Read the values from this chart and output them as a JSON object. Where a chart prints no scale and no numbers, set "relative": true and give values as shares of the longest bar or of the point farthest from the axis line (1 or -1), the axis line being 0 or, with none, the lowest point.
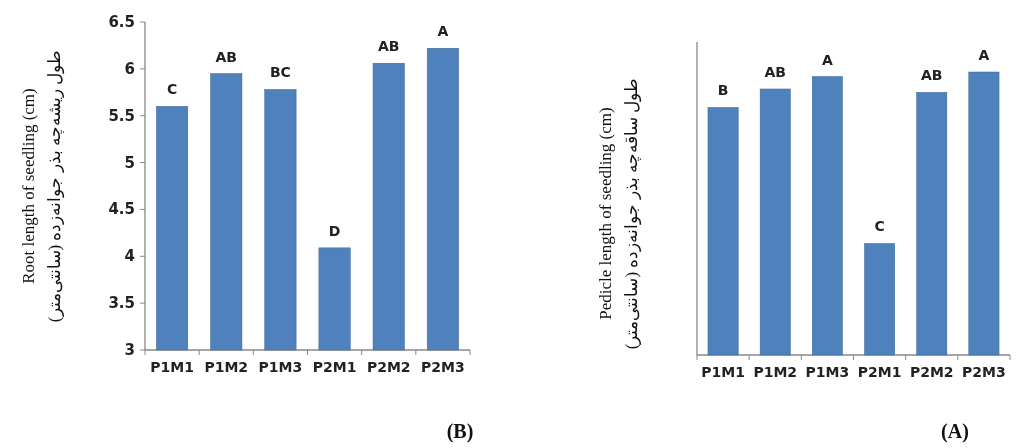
{
  "chart_data": [
    {
      "type": "bar",
      "ylabel": "Root length of seedling (cm)\nطول ریشه‌چه بذر جوانه‌زده (سانتی‌متر)",
      "categories": [
        "P1M1",
        "P1M2",
        "P1M3",
        "P2M1",
        "P2M2",
        "P2M3"
      ],
      "values": [
        5.6,
        5.95,
        5.78,
        4.09,
        6.06,
        6.22
      ],
      "color": "#4f81bd",
      "ylim": [
        3,
        6.5
      ],
      "yticks": [
        3,
        3.5,
        4,
        4.5,
        5,
        5.5,
        6,
        6.5
      ],
      "grid": false,
      "annotations": [
        {
          "text": "C",
          "x": "P1M1",
          "y": 5.6
        },
        {
          "text": "AB",
          "x": "P1M2",
          "y": 5.95
        },
        {
          "text": "BC",
          "x": "P1M3",
          "y": 5.78
        },
        {
          "text": "D",
          "x": "P2M1",
          "y": 4.09
        },
        {
          "text": "AB",
          "x": "P2M2",
          "y": 6.06
        },
        {
          "text": "A",
          "x": "P2M3",
          "y": 6.22
        },
        "(B)"
      ]
    },
    {
      "type": "bar",
      "relative": true,
      "ylabel": "Pedicle length of seedling (cm)\nطول ساقه‌چه بذر جوانه‌زده (سانتی‌متر)",
      "categories": [
        "P1M1",
        "P1M2",
        "P1M3",
        "P2M1",
        "P2M2",
        "P2M3"
      ],
      "values": [
        0.875,
        0.94,
        0.984,
        0.394,
        0.928,
        1
      ],
      "color": "#4f81bd",
      "grid": false,
      "annotations": [
        {
          "text": "B",
          "x": "P1M1",
          "y": 0.875
        },
        {
          "text": "AB",
          "x": "P1M2",
          "y": 0.94
        },
        {
          "text": "A",
          "x": "P1M3",
          "y": 0.984
        },
        {
          "text": "C",
          "x": "P2M1",
          "y": 0.394
        },
        {
          "text": "AB",
          "x": "P2M2",
          "y": 0.928
        },
        {
          "text": "A",
          "x": "P2M3",
          "y": 1
        },
        "(A)"
      ]
    }
  ]
}
